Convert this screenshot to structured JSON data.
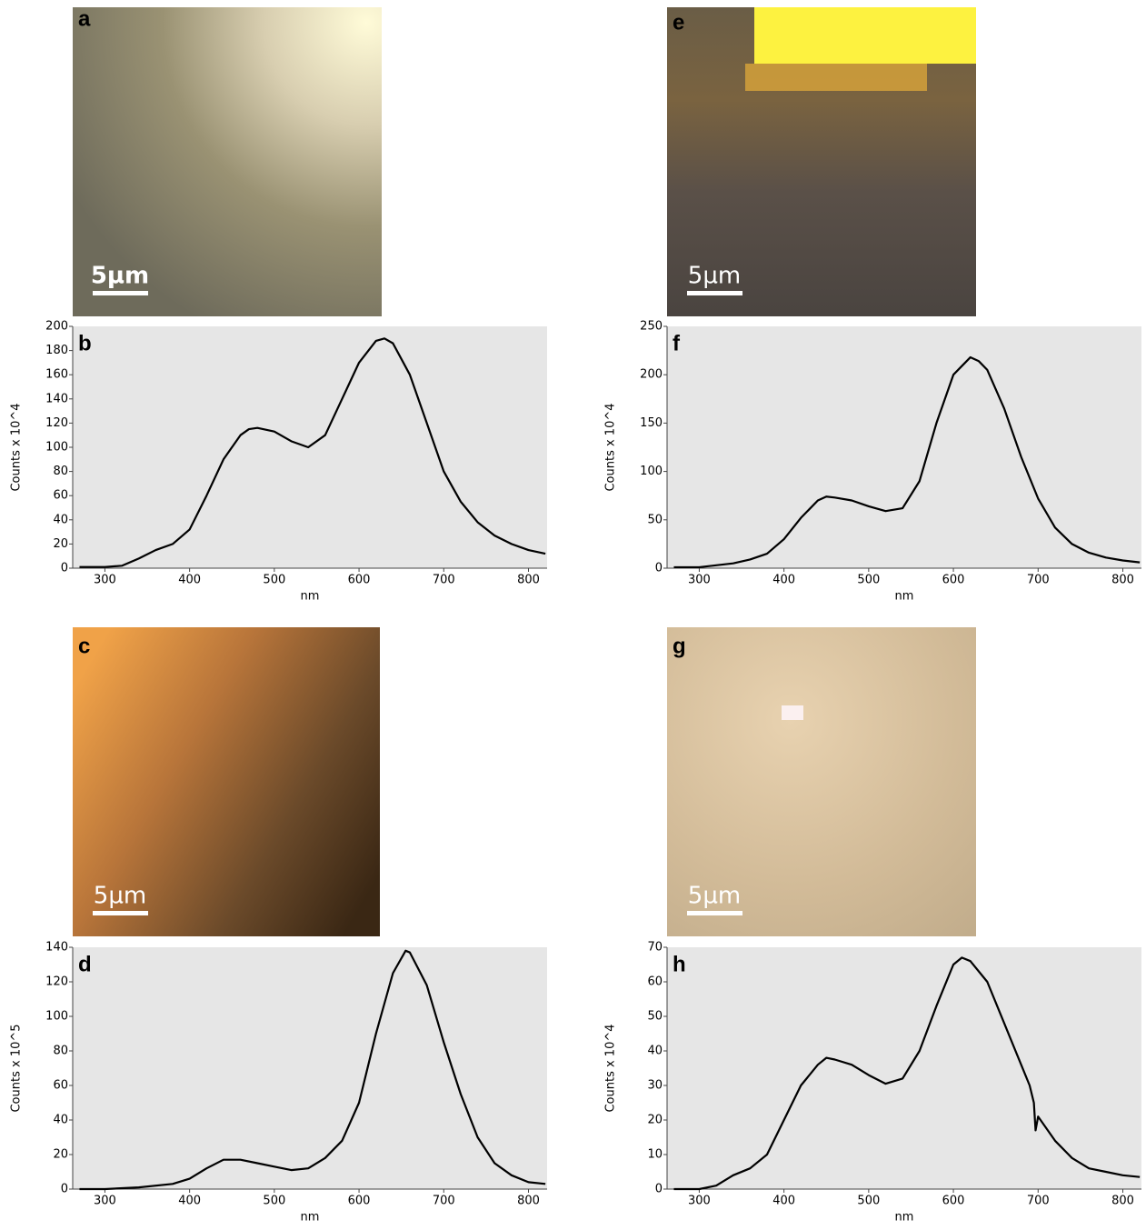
{
  "images": [
    {
      "label": "a",
      "scale_bar": "5µm"
    },
    {
      "label": "c",
      "scale_bar": "5µm"
    },
    {
      "label": "e",
      "scale_bar": "5µm"
    },
    {
      "label": "g",
      "scale_bar": "5µm"
    }
  ],
  "chart_data": [
    {
      "type": "line",
      "panel_label": "b",
      "xlabel": "nm",
      "ylabel": "Counts x 10^4",
      "color": "#000000",
      "background": "#e6e6e6",
      "x": [
        270,
        300,
        320,
        340,
        360,
        380,
        400,
        420,
        440,
        460,
        470,
        480,
        500,
        520,
        540,
        560,
        580,
        600,
        620,
        630,
        640,
        660,
        680,
        700,
        720,
        740,
        760,
        780,
        800,
        820
      ],
      "values": [
        1,
        1,
        2,
        8,
        15,
        20,
        32,
        60,
        90,
        110,
        115,
        116,
        113,
        105,
        100,
        110,
        140,
        170,
        188,
        190,
        186,
        160,
        120,
        80,
        55,
        38,
        27,
        20,
        15,
        12
      ],
      "xlim": [
        262,
        822
      ],
      "xticks": [
        300,
        400,
        500,
        600,
        700,
        800
      ],
      "ylim": [
        0,
        200
      ],
      "yticks": [
        0,
        20,
        40,
        60,
        80,
        100,
        120,
        140,
        160,
        180,
        200
      ]
    },
    {
      "type": "line",
      "panel_label": "d",
      "xlabel": "nm",
      "ylabel": "Counts x 10^5",
      "color": "#000000",
      "background": "#e6e6e6",
      "x": [
        270,
        300,
        340,
        380,
        400,
        420,
        440,
        450,
        460,
        480,
        500,
        520,
        540,
        560,
        580,
        600,
        620,
        640,
        655,
        660,
        680,
        700,
        720,
        740,
        760,
        780,
        800,
        820
      ],
      "values": [
        0,
        0,
        1,
        3,
        6,
        12,
        17,
        17,
        17,
        15,
        13,
        11,
        12,
        18,
        28,
        50,
        90,
        125,
        138,
        137,
        118,
        85,
        55,
        30,
        15,
        8,
        4,
        3
      ],
      "xlim": [
        262,
        822
      ],
      "xticks": [
        300,
        400,
        500,
        600,
        700,
        800
      ],
      "ylim": [
        0,
        140
      ],
      "yticks": [
        0,
        20,
        40,
        60,
        80,
        100,
        120,
        140
      ]
    },
    {
      "type": "line",
      "panel_label": "f",
      "xlabel": "nm",
      "ylabel": "Counts x 10^4",
      "color": "#000000",
      "background": "#e6e6e6",
      "x": [
        270,
        300,
        340,
        360,
        380,
        400,
        420,
        440,
        450,
        460,
        480,
        500,
        520,
        540,
        560,
        580,
        600,
        620,
        630,
        640,
        660,
        680,
        700,
        720,
        740,
        760,
        780,
        800,
        820
      ],
      "values": [
        1,
        1,
        5,
        9,
        15,
        30,
        52,
        70,
        74,
        73,
        70,
        64,
        59,
        62,
        90,
        150,
        200,
        218,
        214,
        205,
        165,
        115,
        72,
        42,
        25,
        16,
        11,
        8,
        6
      ],
      "xlim": [
        262,
        822
      ],
      "xticks": [
        300,
        400,
        500,
        600,
        700,
        800
      ],
      "ylim": [
        0,
        250
      ],
      "yticks": [
        0,
        50,
        100,
        150,
        200,
        250
      ]
    },
    {
      "type": "line",
      "panel_label": "h",
      "xlabel": "nm",
      "ylabel": "Counts x 10^4",
      "color": "#000000",
      "background": "#e6e6e6",
      "x": [
        270,
        300,
        320,
        340,
        360,
        380,
        400,
        420,
        440,
        450,
        460,
        480,
        500,
        520,
        540,
        560,
        580,
        600,
        610,
        620,
        640,
        660,
        680,
        690,
        695,
        697,
        700,
        720,
        740,
        760,
        780,
        800,
        820
      ],
      "values": [
        0,
        0,
        1,
        4,
        6,
        10,
        20,
        30,
        36,
        38,
        37.5,
        36,
        33,
        30.5,
        32,
        40,
        53,
        65,
        67,
        66,
        60,
        48,
        36,
        30,
        25,
        17,
        21,
        14,
        9,
        6,
        5,
        4,
        3.5
      ],
      "xlim": [
        262,
        822
      ],
      "xticks": [
        300,
        400,
        500,
        600,
        700,
        800
      ],
      "ylim": [
        0,
        70
      ],
      "yticks": [
        0,
        10,
        20,
        30,
        40,
        50,
        60,
        70
      ]
    }
  ]
}
